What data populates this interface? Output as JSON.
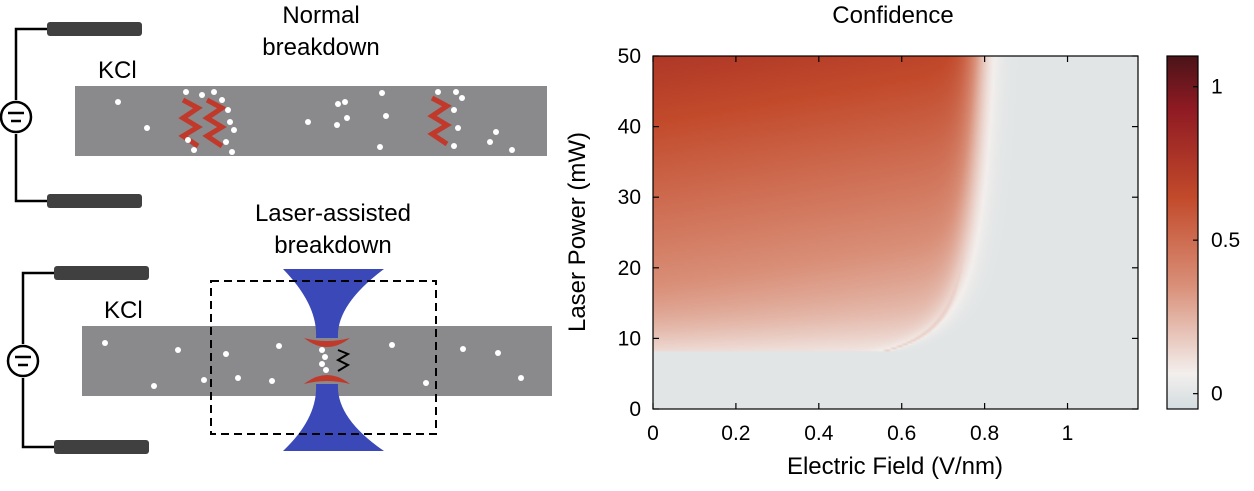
{
  "schematic": {
    "top_title_line1": "Normal",
    "top_title_line2": "breakdown",
    "top_solution_label": "KCl",
    "bottom_title_line1": "Laser-assisted",
    "bottom_title_line2": "breakdown",
    "bottom_solution_label": "KCl",
    "colors": {
      "membrane": "#8a898b",
      "laser": "#3a48b8",
      "defect": "#c0392b",
      "ion": "#ffffff"
    }
  },
  "chart_data": {
    "type": "heatmap",
    "title": "Confidence",
    "xlabel": "Electric Field (V/nm)",
    "ylabel": "Laser  Power (mW)",
    "xlim": [
      0,
      1.17
    ],
    "ylim": [
      0,
      50
    ],
    "xticks": [
      0,
      0.2,
      0.4,
      0.6,
      0.8,
      1
    ],
    "xtick_labels": [
      "0",
      "0.2",
      "0.4",
      "0.6",
      "0.8",
      "1"
    ],
    "yticks": [
      0,
      10,
      20,
      30,
      40,
      50
    ],
    "ytick_labels": [
      "0",
      "10",
      "20",
      "30",
      "40",
      "50"
    ],
    "colorbar": {
      "range": [
        -0.05,
        1.1
      ],
      "ticks": [
        0,
        0.5,
        1
      ],
      "tick_labels": [
        "0",
        "0.5",
        "1"
      ],
      "colors": [
        "#d3dde0",
        "#f3efed",
        "#d98f78",
        "#c24a2b",
        "#8f1a23",
        "#4a1418"
      ]
    },
    "boundary": {
      "E_transition_high_power": 0.8,
      "P_threshold_mW": 8
    },
    "grid": false
  }
}
